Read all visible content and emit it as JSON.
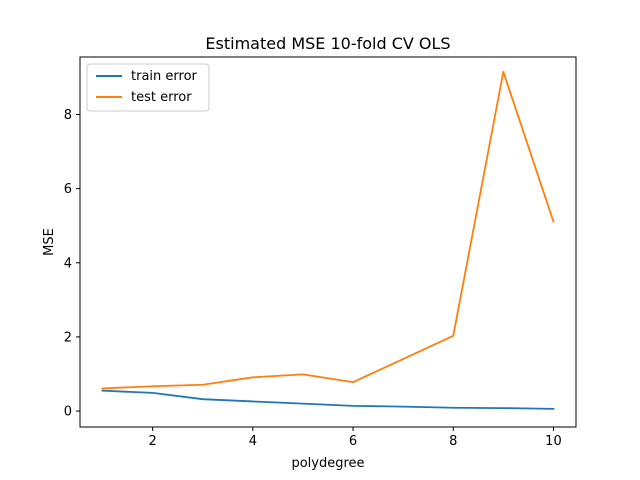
{
  "chart_data": {
    "type": "line",
    "title": "Estimated MSE 10-fold CV OLS",
    "xlabel": "polydegree",
    "ylabel": "MSE",
    "xlim": [
      0.55,
      10.45
    ],
    "ylim": [
      -0.43,
      9.55
    ],
    "xticks": [
      2,
      4,
      6,
      8,
      10
    ],
    "yticks": [
      0,
      2,
      4,
      6,
      8
    ],
    "grid": false,
    "legend_position": "top-left",
    "x": [
      1,
      2,
      3,
      4,
      5,
      6,
      7,
      8,
      9,
      10
    ],
    "series": [
      {
        "name": "train error",
        "color": "#1f77b4",
        "values": [
          0.55,
          0.49,
          0.32,
          0.26,
          0.2,
          0.14,
          0.12,
          0.09,
          0.08,
          0.06
        ]
      },
      {
        "name": "test error",
        "color": "#ff7f0e",
        "values": [
          0.61,
          0.67,
          0.71,
          0.91,
          0.99,
          0.78,
          null,
          2.03,
          9.15,
          5.11
        ]
      }
    ]
  }
}
